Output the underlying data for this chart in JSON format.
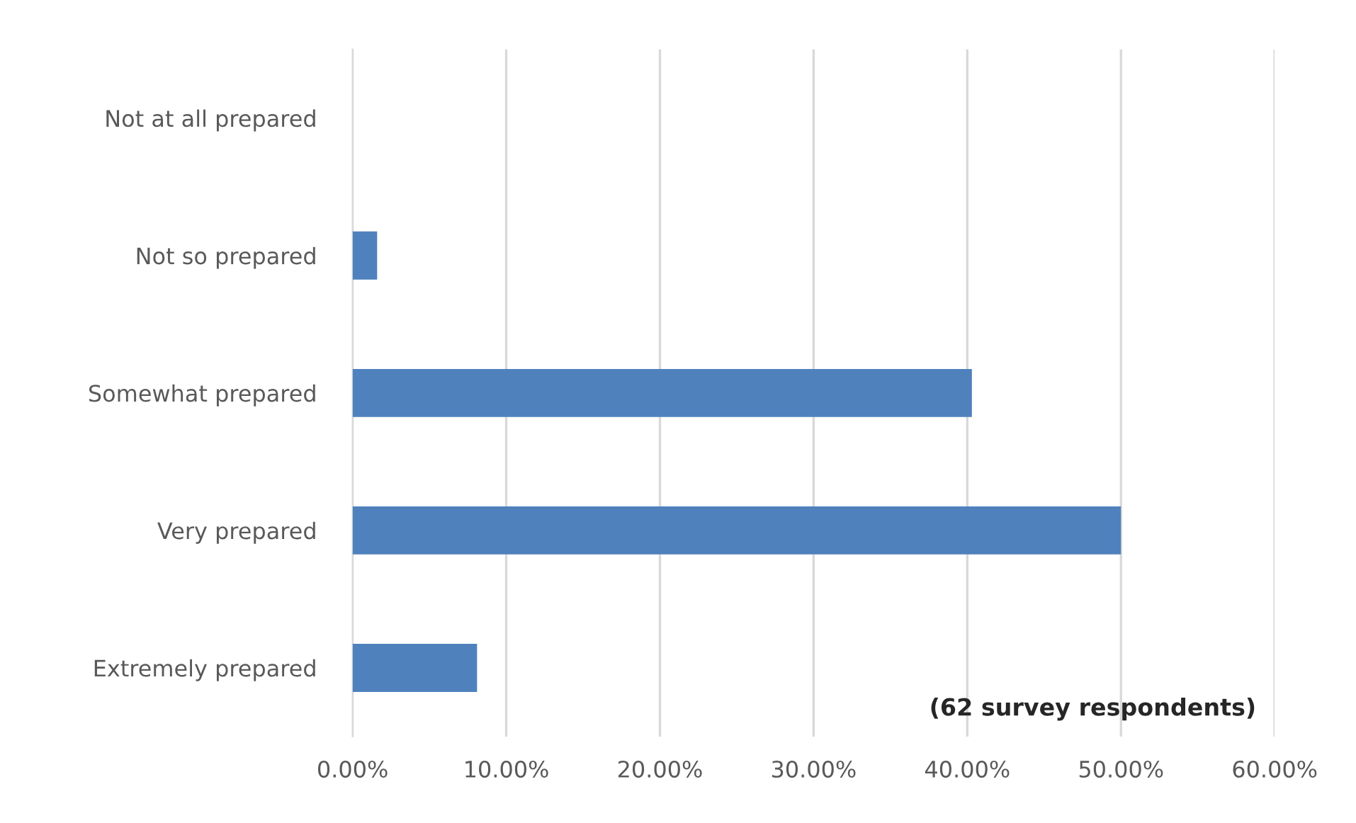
{
  "chart_data": {
    "type": "bar",
    "orientation": "horizontal",
    "categories": [
      "Not at all prepared",
      "Not so prepared",
      "Somewhat prepared",
      "Very prepared",
      "Extremely prepared"
    ],
    "values": [
      0,
      1.6,
      40.3,
      50,
      8.1
    ],
    "color": "#4f81bd",
    "xlim": [
      0,
      60
    ],
    "xticks": [
      {
        "value": 0,
        "label": "0.00%"
      },
      {
        "value": 10,
        "label": "10.00%"
      },
      {
        "value": 20,
        "label": "20.00%"
      },
      {
        "value": 30,
        "label": "30.00%"
      },
      {
        "value": 40,
        "label": "40.00%"
      },
      {
        "value": 50,
        "label": "50.00%"
      },
      {
        "value": 60,
        "label": "60.00%"
      }
    ],
    "grid": "x",
    "annotations": [
      "(62 survey respondents)"
    ]
  }
}
